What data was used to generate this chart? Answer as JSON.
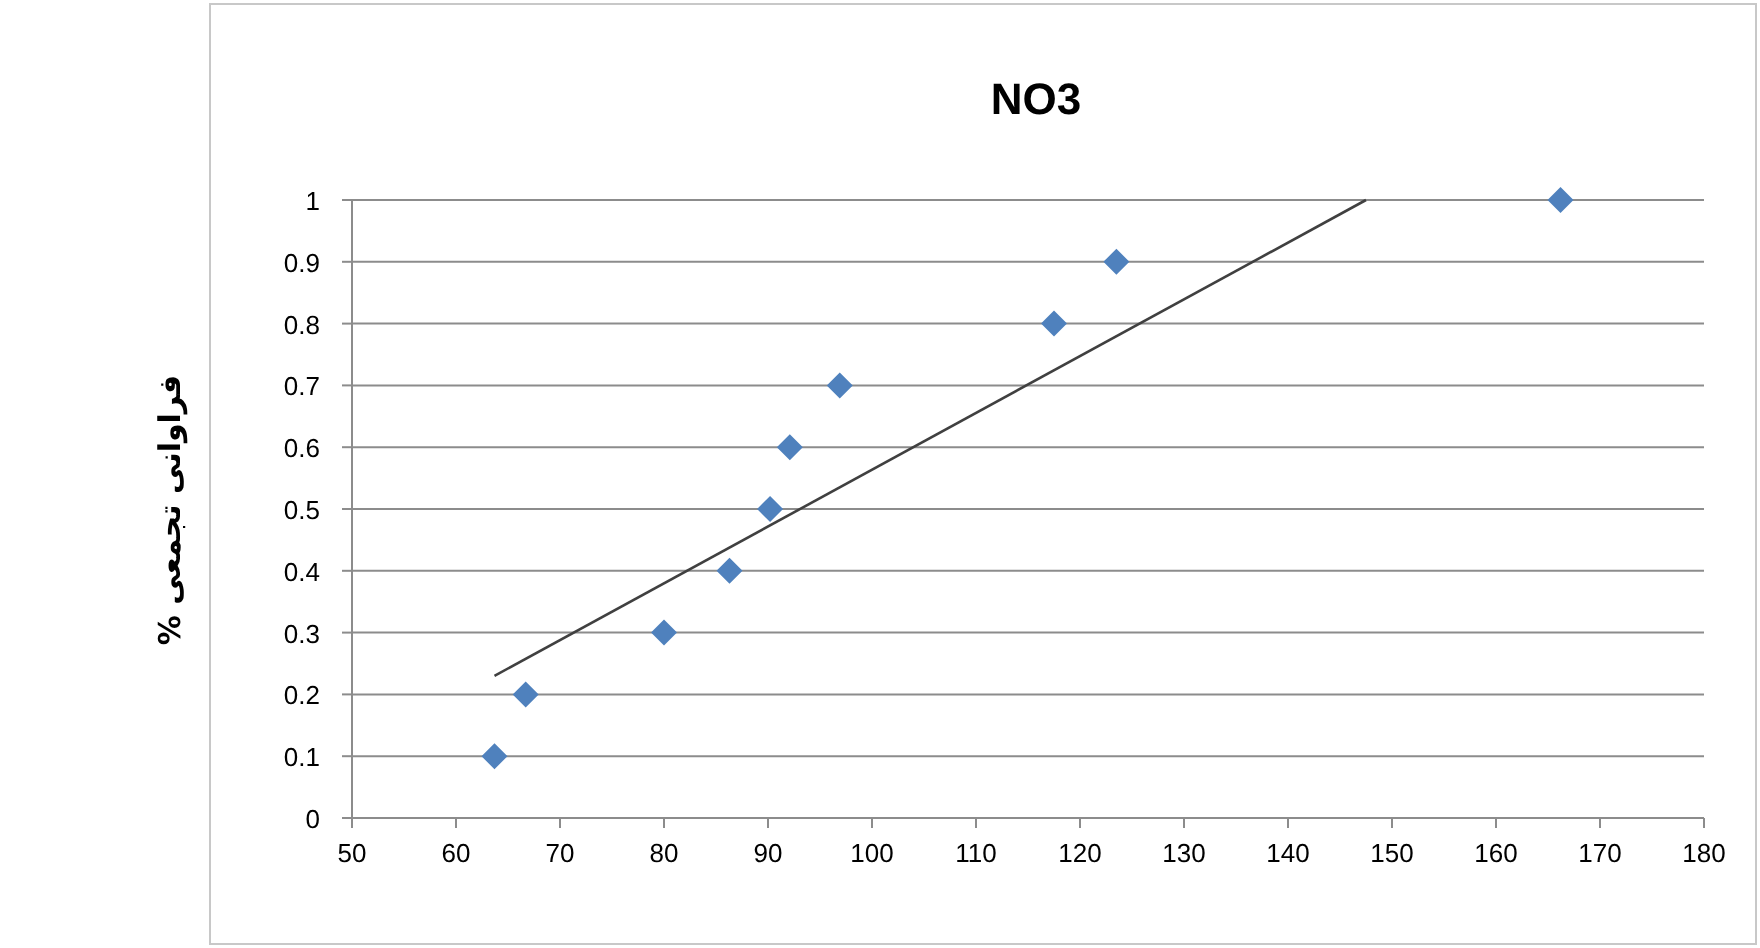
{
  "chart_data": {
    "type": "scatter",
    "title": "NO3",
    "ylabel": "فراوانی تجمعی %",
    "xlim": [
      50,
      180
    ],
    "xticks": [
      50,
      60,
      70,
      80,
      90,
      100,
      110,
      120,
      130,
      140,
      150,
      160,
      170,
      180
    ],
    "ylim": [
      0,
      1
    ],
    "yticks": [
      0,
      0.1,
      0.2,
      0.3,
      0.4,
      0.5,
      0.6,
      0.7,
      0.8,
      0.9,
      1
    ],
    "grid": "y",
    "legend": false,
    "marker": "diamond",
    "series": [
      {
        "color": "#4f81bd",
        "x": [
          63.7,
          66.7,
          80,
          86.3,
          90.2,
          92.1,
          96.9,
          117.5,
          123.5,
          166.2
        ],
        "values": [
          0.1,
          0.2,
          0.3,
          0.4,
          0.5,
          0.6,
          0.7,
          0.8,
          0.9,
          1
        ]
      },
      {
        "type": "line",
        "color": "#404040",
        "marker": "none",
        "x": [
          63.7,
          147.5
        ],
        "values": [
          0.23,
          1
        ]
      }
    ]
  }
}
